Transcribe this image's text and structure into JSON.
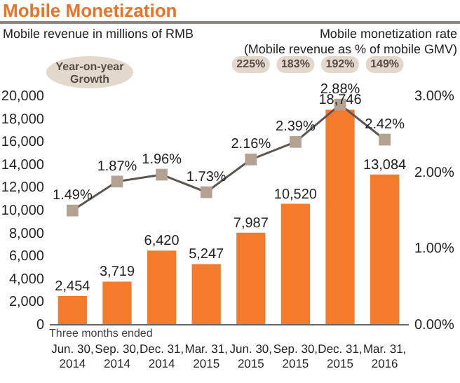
{
  "chart_data": {
    "type": "bar",
    "title": "Mobile Monetization",
    "ylabel": "Mobile revenue in millions of RMB",
    "y2label": "Mobile monetization rate\n(Mobile revenue as % of mobile GMV)",
    "categories": [
      "Jun. 30, 2014",
      "Sep. 30, 2014",
      "Dec. 31, 2014",
      "Mar. 31, 2015",
      "Jun. 30, 2015",
      "Sep. 30, 2015",
      "Dec. 31, 2015",
      "Mar. 31, 2016"
    ],
    "series": [
      {
        "color": "#f47b2c",
        "values": [
          2454,
          3719,
          6420,
          5247,
          7987,
          10520,
          18746,
          13084
        ],
        "value_labels": [
          "2,454",
          "3,719",
          "6,420",
          "5,247",
          "7,987",
          "10,520",
          "18,746",
          "13,084"
        ]
      },
      {
        "type": "line",
        "axis": "y2",
        "color": "#5b5652",
        "marker": "square",
        "values": [
          1.49,
          1.87,
          1.96,
          1.73,
          2.16,
          2.39,
          2.88,
          2.42
        ],
        "value_labels": [
          "1.49%",
          "1.87%",
          "1.96%",
          "1.73%",
          "2.16%",
          "2.39%",
          "2.88%",
          "2.42%"
        ]
      }
    ],
    "ylim": [
      0,
      20000
    ],
    "yticks": [
      {
        "value": 0,
        "label": "0"
      },
      {
        "value": 2000,
        "label": "2,000"
      },
      {
        "value": 4000,
        "label": "4,000"
      },
      {
        "value": 6000,
        "label": "6,000"
      },
      {
        "value": 8000,
        "label": "8,000"
      },
      {
        "value": 10000,
        "label": "10,000"
      },
      {
        "value": 12000,
        "label": "12,000"
      },
      {
        "value": 14000,
        "label": "14,000"
      },
      {
        "value": 16000,
        "label": "16,000"
      },
      {
        "value": 18000,
        "label": "18,000"
      },
      {
        "value": 20000,
        "label": "20,000"
      }
    ],
    "y2lim": [
      0,
      3
    ],
    "y2ticks": [
      {
        "value": 0,
        "label": "0.00%"
      },
      {
        "value": 1,
        "label": "1.00%"
      },
      {
        "value": 2,
        "label": "2.00%"
      },
      {
        "value": 3,
        "label": "3.00%"
      }
    ],
    "annotations": [
      "Year-on-year Growth",
      "Three months ended",
      "225%",
      "183%",
      "192%",
      "149%"
    ],
    "grid": false
  }
}
